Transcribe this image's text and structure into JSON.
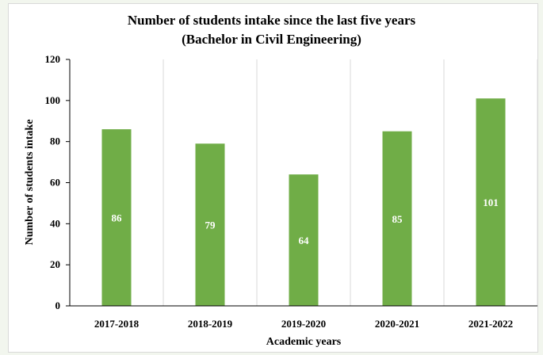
{
  "chart_data": {
    "type": "bar",
    "title": "Number of students intake since the last five years",
    "subtitle": "(Bachelor in Civil Engineering)",
    "xlabel": "Academic years",
    "ylabel": "Number of students intake",
    "categories": [
      "2017-2018",
      "2018-2019",
      "2019-2020",
      "2020-2021",
      "2021-2022"
    ],
    "values": [
      86,
      79,
      64,
      85,
      101
    ],
    "ylim": [
      0,
      120
    ],
    "yticks": [
      0,
      20,
      40,
      60,
      80,
      100,
      120
    ],
    "grid": "vertical",
    "legend": "none",
    "bar_color": "#70ad47"
  }
}
